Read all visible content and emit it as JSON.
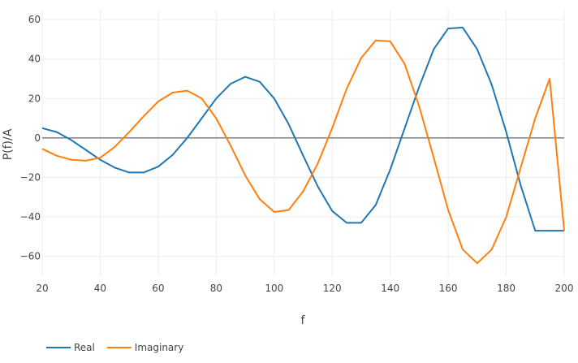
{
  "chart_data": {
    "type": "line",
    "title": "",
    "xlabel": "f",
    "ylabel": "P(f)/A",
    "xlim": [
      20,
      200
    ],
    "ylim": [
      -70,
      65
    ],
    "xticks": [
      20,
      40,
      60,
      80,
      100,
      120,
      140,
      160,
      180,
      200
    ],
    "yticks": [
      -60,
      -40,
      -20,
      0,
      20,
      40,
      60
    ],
    "xtick_labels": [
      "20",
      "40",
      "60",
      "80",
      "100",
      "120",
      "140",
      "160",
      "180",
      "200"
    ],
    "ytick_labels": [
      "−60",
      "−40",
      "−20",
      "0",
      "20",
      "40",
      "60"
    ],
    "grid": true,
    "zero_line": true,
    "legend_position": "bottom-left",
    "x": [
      20,
      25,
      30,
      35,
      40,
      45,
      50,
      55,
      60,
      65,
      70,
      75,
      80,
      85,
      90,
      95,
      100,
      105,
      110,
      115,
      120,
      125,
      130,
      135,
      140,
      145,
      150,
      155,
      160,
      165,
      170,
      175,
      180,
      185,
      190,
      195,
      200
    ],
    "series": [
      {
        "name": "Real",
        "color": "#1f77b4",
        "values": [
          5,
          3,
          -1,
          -6,
          -11,
          -15,
          -17.5,
          -17.5,
          -14.5,
          -8.5,
          0,
          10,
          20,
          27.5,
          31,
          28.5,
          20,
          7,
          -9,
          -24.5,
          -37,
          -43,
          -43,
          -34,
          -16,
          5,
          26,
          45,
          55.5,
          56,
          45,
          27,
          3,
          -24,
          -47,
          -47,
          -47
        ]
      },
      {
        "name": "Imaginary",
        "color": "#ff7f0e",
        "values": [
          -5.5,
          -9,
          -11,
          -11.5,
          -10,
          -4.5,
          3,
          11,
          18.5,
          23,
          24,
          20,
          10,
          -4,
          -19,
          -31,
          -37.5,
          -36.5,
          -27,
          -13,
          5,
          25,
          40.5,
          49.5,
          49,
          37.5,
          16,
          -10,
          -36.5,
          -56.5,
          -63.5,
          -56.5,
          -40,
          -15,
          10,
          30,
          -47
        ]
      }
    ]
  }
}
